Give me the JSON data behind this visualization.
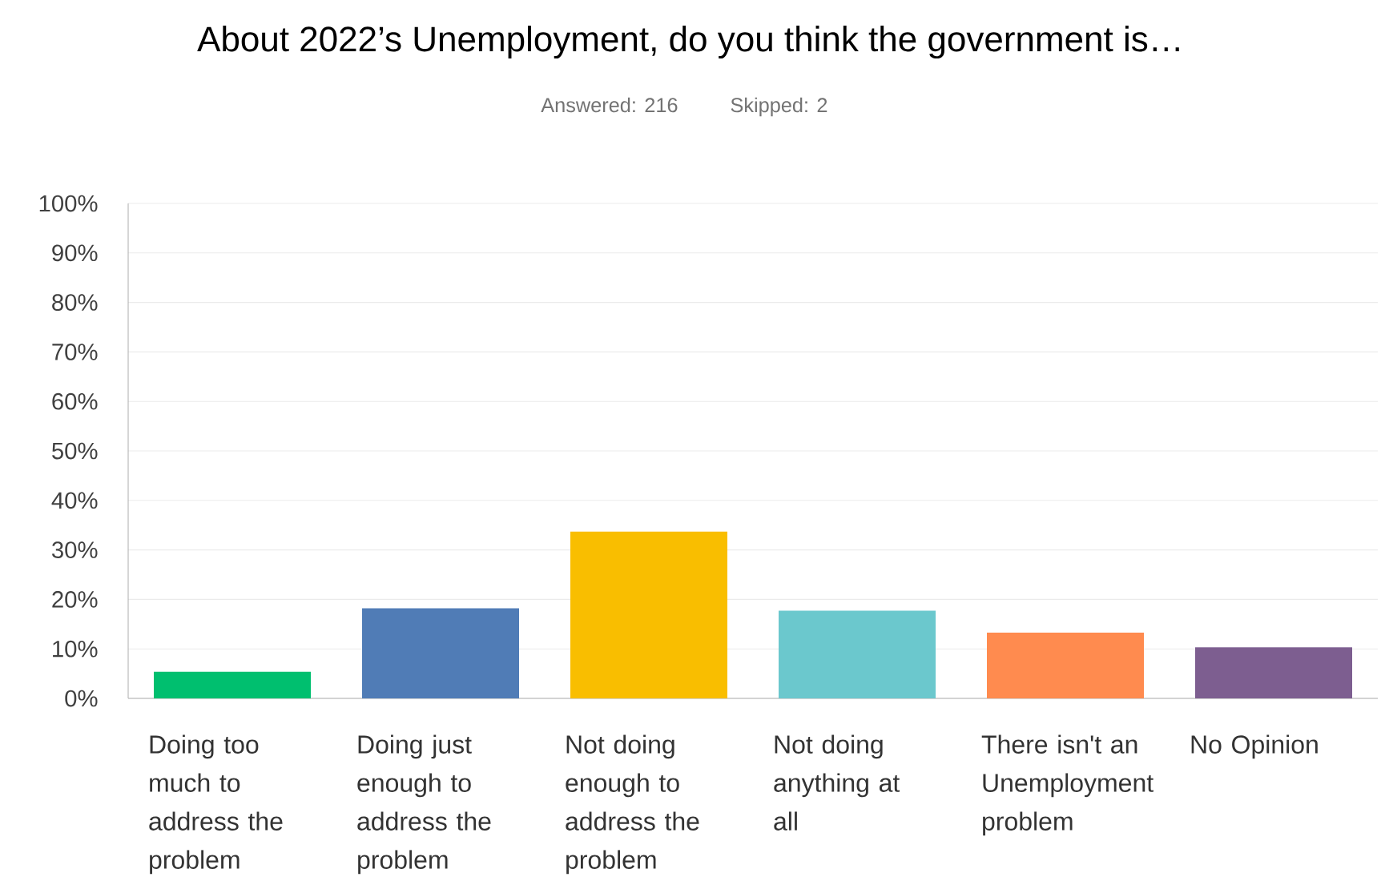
{
  "chart_data": {
    "type": "bar",
    "title": "About 2022’s Unemployment, do you think the government is…",
    "subtitle": "Answered: 216",
    "annotations": [
      "Skipped: 2"
    ],
    "categories": [
      "Doing too much to address the problem",
      "Doing just enough to address the problem",
      "Not doing enough to address the problem",
      "Not doing anything at all",
      "There isn't an Unemployment problem",
      "No Opinion"
    ],
    "values": [
      5.4,
      18.2,
      33.7,
      17.7,
      13.3,
      10.3
    ],
    "colors": [
      "#00bf6f",
      "#507cb6",
      "#f9be00",
      "#6bc8cd",
      "#ff8b4f",
      "#7d5e90"
    ],
    "ylim": [
      0,
      100
    ],
    "yticks": [
      {
        "value": 0,
        "label": "0%"
      },
      {
        "value": 10,
        "label": "10%"
      },
      {
        "value": 20,
        "label": "20%"
      },
      {
        "value": 30,
        "label": "30%"
      },
      {
        "value": 40,
        "label": "40%"
      },
      {
        "value": 50,
        "label": "50%"
      },
      {
        "value": 60,
        "label": "60%"
      },
      {
        "value": 70,
        "label": "70%"
      },
      {
        "value": 80,
        "label": "80%"
      },
      {
        "value": 90,
        "label": "90%"
      },
      {
        "value": 100,
        "label": "100%"
      }
    ],
    "grid": "y"
  }
}
